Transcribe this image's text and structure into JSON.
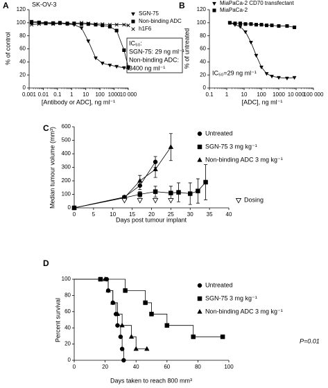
{
  "chart_data": [
    {
      "type": "line",
      "panel_label": "A",
      "title": "SK-OV-3",
      "x_label": "[Antibody or ADC], ng ml⁻¹",
      "y_label": "% of control",
      "log_x": true,
      "xlim": [
        0.001,
        10000
      ],
      "xticks": [
        0.001,
        0.01,
        0.1,
        1,
        10,
        100,
        1000,
        {
          "value": 10000,
          "label": "10 000"
        }
      ],
      "ylim": [
        0,
        120
      ],
      "yticks": [
        0,
        20,
        40,
        60,
        80,
        100,
        120
      ],
      "series": [
        {
          "name": "SGN-75",
          "color": "#000000",
          "marker": "triangle-down",
          "x": [
            0.0015,
            0.005,
            0.015,
            0.05,
            0.15,
            0.5,
            1.5,
            5,
            15,
            50,
            150,
            500,
            1500,
            5000,
            10000
          ],
          "values": [
            102,
            101,
            100,
            100,
            99,
            98,
            97,
            92,
            72,
            46,
            38,
            35,
            33,
            31,
            30
          ]
        },
        {
          "name": "Non-binding ADC",
          "color": "#000000",
          "marker": "square",
          "x": [
            0.0015,
            0.005,
            0.015,
            0.05,
            0.15,
            0.5,
            1.5,
            5,
            15,
            50,
            150,
            500,
            1500,
            5000,
            10000
          ],
          "values": [
            100,
            100,
            99,
            99,
            100,
            99,
            99,
            98,
            98,
            97,
            96,
            94,
            88,
            58,
            32
          ]
        },
        {
          "name": "h1F6",
          "color": "#000000",
          "marker": "x",
          "x": [
            0.0015,
            0.005,
            0.015,
            0.05,
            0.15,
            0.5,
            1.5,
            5,
            15,
            50,
            150,
            500,
            1500,
            5000,
            10000
          ],
          "values": [
            97,
            98,
            99,
            98,
            99,
            98,
            99,
            100,
            99,
            98,
            98,
            97,
            97,
            97,
            96
          ]
        }
      ],
      "annotations": [
        "IC₅₀:",
        "SGN-75: 29 ng ml⁻¹",
        "Non-binding ADC:",
        "3400 ng ml⁻¹"
      ]
    },
    {
      "type": "line",
      "panel_label": "B",
      "x_label": "[ADC], ng ml⁻¹",
      "y_label": "% of untreated",
      "log_x": true,
      "xlim": [
        0.1,
        100000
      ],
      "xticks": [
        0.1,
        1,
        10,
        100,
        1000,
        {
          "value": 10000,
          "label": "10 000"
        },
        {
          "value": 100000,
          "label": "100 000"
        }
      ],
      "ylim": [
        0,
        120
      ],
      "yticks": [
        0,
        20,
        40,
        60,
        80,
        100,
        120
      ],
      "series": [
        {
          "name": "MiaPaCa-2 CD70 transfectant",
          "color": "#000000",
          "marker": "triangle-down",
          "x": [
            1.5,
            3,
            6,
            12,
            25,
            50,
            100,
            200,
            400,
            1000,
            3000,
            8000
          ],
          "values": [
            100,
            97,
            94,
            86,
            70,
            50,
            32,
            22,
            18,
            16,
            15,
            16
          ]
        },
        {
          "name": "MiaPaCa-2",
          "color": "#000000",
          "marker": "square",
          "x": [
            1.5,
            3,
            6,
            12,
            25,
            50,
            100,
            200,
            400,
            1000,
            3000,
            8000
          ],
          "values": [
            100,
            99,
            99,
            98,
            98,
            97,
            97,
            96,
            96,
            95,
            95,
            93
          ]
        }
      ],
      "annotations": [
        "IC₅₀=29 ng ml⁻¹"
      ]
    },
    {
      "type": "line",
      "panel_label": "C",
      "x_label": "Days post tumour implant",
      "y_label": "Median tumour volume (mm³)",
      "log_x": false,
      "xlim": [
        0,
        40
      ],
      "xticks": [
        0,
        5,
        10,
        15,
        20,
        25,
        30,
        35,
        40
      ],
      "ylim": [
        0,
        600
      ],
      "yticks": [
        0,
        100,
        200,
        300,
        400,
        500,
        600
      ],
      "series": [
        {
          "name": "Untreated",
          "color": "#000000",
          "marker": "circle",
          "x": [
            0,
            13,
            17,
            21
          ],
          "values": [
            0,
            80,
            165,
            340
          ],
          "errors": [
            0,
            10,
            30,
            40
          ]
        },
        {
          "name": "SGN-75 3 mg kg⁻¹",
          "color": "#000000",
          "marker": "square",
          "x": [
            0,
            13,
            17,
            21,
            25,
            27,
            30,
            32,
            34
          ],
          "values": [
            0,
            75,
            100,
            120,
            110,
            115,
            105,
            125,
            190
          ],
          "errors": [
            0,
            10,
            20,
            40,
            50,
            70,
            80,
            90,
            130
          ]
        },
        {
          "name": "Non-binding ADC 3 mg kg⁻¹",
          "color": "#000000",
          "marker": "triangle",
          "x": [
            0,
            13,
            17,
            21,
            25
          ],
          "values": [
            0,
            75,
            200,
            285,
            450
          ],
          "errors": [
            0,
            10,
            40,
            60,
            100
          ]
        }
      ],
      "dosing": {
        "label": "Dosing",
        "days": [
          13,
          17,
          21,
          25
        ]
      }
    },
    {
      "type": "survival",
      "panel_label": "D",
      "x_label": "Days taken to reach 800 mm³",
      "y_label": "Percent survival",
      "log_x": false,
      "xlim": [
        0,
        100
      ],
      "xticks": [
        0,
        20,
        40,
        60,
        80,
        100
      ],
      "ylim": [
        0,
        100
      ],
      "yticks": [
        0,
        20,
        40,
        60,
        80,
        100
      ],
      "series": [
        {
          "name": "Untreated",
          "color": "#000000",
          "marker": "circle",
          "x": [
            21,
            22,
            25,
            27,
            28,
            30,
            31,
            32
          ],
          "values": [
            100,
            86,
            71,
            57,
            43,
            29,
            14,
            0
          ]
        },
        {
          "name": "SGN-75 3 mg kg⁻¹",
          "color": "#000000",
          "marker": "square",
          "x": [
            17,
            33,
            46,
            50,
            60,
            77,
            96
          ],
          "values": [
            100,
            86,
            71,
            57,
            43,
            29,
            29
          ]
        },
        {
          "name": "Non-binding ADC 3 mg kg⁻¹",
          "color": "#000000",
          "marker": "triangle",
          "x": [
            20,
            22,
            25,
            28,
            31,
            37,
            40,
            47
          ],
          "values": [
            100,
            86,
            71,
            57,
            43,
            29,
            14,
            14
          ]
        }
      ],
      "annotations": [
        "P=0.01"
      ]
    }
  ]
}
